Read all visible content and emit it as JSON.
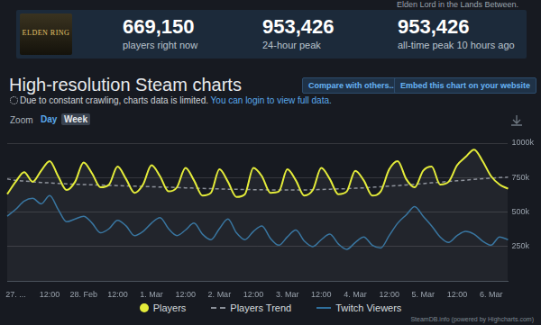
{
  "page": {
    "top_text": "Elden Lord in the Lands Between.",
    "logo": "ELDEN RING",
    "stats": [
      {
        "value": "669,150",
        "label": "players right now"
      },
      {
        "value": "953,426",
        "label": "24-hour peak"
      },
      {
        "value": "953,426",
        "label": "all-time peak 10 hours ago"
      }
    ],
    "title": "High-resolution Steam charts",
    "buttons": [
      "Compare with others...",
      "Embed this chart on your website"
    ],
    "notice": "Due to constant crawling, charts data is limited.",
    "notice_link": "You can login to view full data.",
    "zoom_label": "Zoom",
    "zoom_options": [
      "Day",
      "Week"
    ],
    "zoom_selected": "Week",
    "credit": "SteamDB.info (powered by Highcharts.com)"
  },
  "chart_data": {
    "type": "line",
    "categories": [
      null,
      "27. ...",
      null,
      null,
      null,
      "12:00",
      null,
      null,
      null,
      "28. Feb",
      null,
      null,
      null,
      "12:00",
      null,
      null,
      null,
      "1. Mar",
      null,
      null,
      null,
      "12:00",
      null,
      null,
      null,
      "2. Mar",
      null,
      null,
      null,
      "12:00",
      null,
      null,
      null,
      "3. Mar",
      null,
      null,
      null,
      "12:00",
      null,
      null,
      null,
      "4. Mar",
      null,
      null,
      null,
      "12:00",
      null,
      null,
      null,
      "5. Mar",
      null,
      null,
      null,
      "12:00",
      null,
      null,
      null,
      "6. Mar",
      null,
      null
    ],
    "series": [
      {
        "name": "Players",
        "type": "area",
        "color": "#e4ec3a",
        "marker": "none",
        "line_style": "solid",
        "values": [
          630000,
          720000,
          790000,
          720000,
          800000,
          870000,
          760000,
          660000,
          720000,
          860000,
          780000,
          680000,
          700000,
          830000,
          740000,
          640000,
          700000,
          840000,
          760000,
          650000,
          680000,
          820000,
          730000,
          620000,
          640000,
          810000,
          720000,
          610000,
          630000,
          820000,
          760000,
          640000,
          650000,
          810000,
          730000,
          620000,
          660000,
          820000,
          740000,
          630000,
          650000,
          800000,
          730000,
          620000,
          650000,
          810000,
          870000,
          740000,
          680000,
          800000,
          830000,
          700000,
          720000,
          840000,
          900000,
          953426,
          870000,
          760000,
          700000,
          669150
        ]
      },
      {
        "name": "Players Trend",
        "type": "line",
        "color": "#8a8f98",
        "marker": "none",
        "line_style": "dashed",
        "values": [
          740000,
          730000,
          725000,
          720000,
          715000,
          712000,
          708000,
          705000,
          702000,
          700000,
          698000,
          696000,
          694000,
          692000,
          690000,
          688000,
          686000,
          684000,
          682000,
          680000,
          678000,
          676000,
          674000,
          672000,
          670000,
          668000,
          666000,
          665000,
          664000,
          663000,
          662000,
          661000,
          660000,
          660000,
          660000,
          661000,
          662000,
          664000,
          666000,
          668000,
          670000,
          673000,
          676000,
          680000,
          684000,
          688000,
          692000,
          697000,
          702000,
          707000,
          712000,
          717000,
          722000,
          727000,
          732000,
          737000,
          742000,
          746000,
          750000,
          754000
        ]
      },
      {
        "name": "Twitch Viewers",
        "type": "line",
        "color": "#2f6f9c",
        "marker": "none",
        "line_style": "solid",
        "values": [
          470000,
          520000,
          580000,
          600000,
          560000,
          620000,
          520000,
          430000,
          450000,
          470000,
          420000,
          350000,
          380000,
          440000,
          400000,
          330000,
          360000,
          420000,
          460000,
          380000,
          330000,
          370000,
          420000,
          340000,
          300000,
          380000,
          450000,
          350000,
          300000,
          360000,
          400000,
          310000,
          260000,
          320000,
          370000,
          290000,
          250000,
          300000,
          340000,
          270000,
          230000,
          280000,
          320000,
          260000,
          240000,
          330000,
          420000,
          480000,
          540000,
          470000,
          400000,
          320000,
          280000,
          330000,
          360000,
          340000,
          290000,
          260000,
          320000,
          300000
        ]
      }
    ],
    "ylim": [
      0,
      1000000
    ],
    "yticks": [
      {
        "value": 250000,
        "label": "250k"
      },
      {
        "value": 500000,
        "label": "500k"
      },
      {
        "value": 750000,
        "label": "750k"
      },
      {
        "value": 1000000,
        "label": "1000k"
      }
    ],
    "grid": true,
    "legend": "bottom"
  }
}
